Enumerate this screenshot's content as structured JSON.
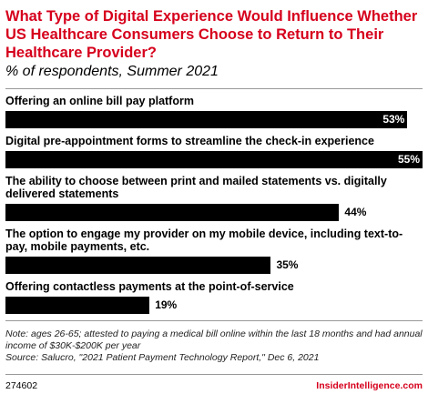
{
  "chart_data": {
    "type": "bar",
    "orientation": "horizontal",
    "title": "What Type of Digital Experience Would Influence Whether US Healthcare Consumers Choose to Return to Their Healthcare Provider?",
    "subtitle": "% of respondents, Summer 2021",
    "categories": [
      "Offering an online bill pay platform",
      "Digital pre-appointment forms to streamline the check-in experience",
      "The ability to choose between print and mailed statements vs. digitally delivered statements",
      "The option to engage my provider on my mobile device, including text-to-pay, mobile payments, etc.",
      "Offering contactless payments at the point-of-service"
    ],
    "values": [
      53,
      55,
      44,
      35,
      19
    ],
    "value_labels": [
      "53%",
      "55%",
      "44%",
      "35%",
      "19%"
    ],
    "color": "#000000",
    "note": "Note: ages 26-65; attested to paying a medical bill online within the last 18 months and had annual income of $30K-$200K per year",
    "source": "Source: Salucro, \"2021 Patient Payment Technology Report,\" Dec 6, 2021",
    "chart_id": "274602",
    "brand": "InsiderIntelligence.com"
  }
}
